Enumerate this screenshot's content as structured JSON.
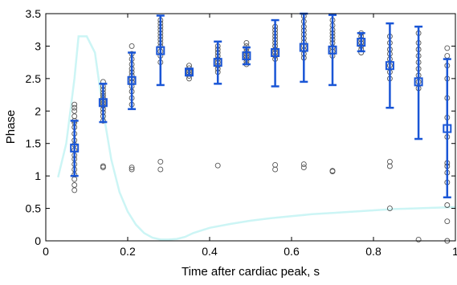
{
  "chart_data": {
    "type": "scatter",
    "title": "",
    "xlabel": "Time after cardiac peak, s",
    "ylabel": "Phase",
    "xlim": [
      0,
      1
    ],
    "ylim": [
      0,
      3.5
    ],
    "xticks": [
      {
        "value": 0,
        "label": "0"
      },
      {
        "value": 0.2,
        "label": "0.2"
      },
      {
        "value": 0.4,
        "label": "0.4"
      },
      {
        "value": 0.6,
        "label": "0.6"
      },
      {
        "value": 0.8,
        "label": "0.8"
      },
      {
        "value": 1,
        "label": "1"
      }
    ],
    "yticks": [
      {
        "value": 0,
        "label": "0"
      },
      {
        "value": 0.5,
        "label": "0.5"
      },
      {
        "value": 1,
        "label": "1"
      },
      {
        "value": 1.5,
        "label": "1.5"
      },
      {
        "value": 2,
        "label": "2"
      },
      {
        "value": 2.5,
        "label": "2.5"
      },
      {
        "value": 3,
        "label": "3"
      },
      {
        "value": 3.5,
        "label": "3.5"
      }
    ],
    "grid": false,
    "legend": "none",
    "colors": {
      "points": "#555555",
      "mean": "#1a56d6",
      "curve": "#ccf5f5"
    },
    "background_curve": {
      "x": [
        0.03,
        0.05,
        0.07,
        0.08,
        0.1,
        0.12,
        0.14,
        0.16,
        0.18,
        0.2,
        0.22,
        0.24,
        0.26,
        0.28,
        0.3,
        0.32,
        0.34,
        0.36,
        0.4,
        0.45,
        0.5,
        0.55,
        0.6,
        0.65,
        0.7,
        0.75,
        0.8,
        0.85,
        0.9,
        0.95,
        1.0
      ],
      "y": [
        0.98,
        1.5,
        2.5,
        3.15,
        3.15,
        2.9,
        2.0,
        1.25,
        0.75,
        0.45,
        0.25,
        0.12,
        0.05,
        0.02,
        0.02,
        0.03,
        0.06,
        0.12,
        0.2,
        0.26,
        0.31,
        0.35,
        0.38,
        0.41,
        0.43,
        0.45,
        0.47,
        0.49,
        0.5,
        0.51,
        0.52
      ]
    },
    "scatter_points": [
      {
        "x": 0.07,
        "y": [
          0.78,
          0.86,
          0.95,
          1.02,
          1.1,
          1.18,
          1.26,
          1.32,
          1.4,
          1.48,
          1.55,
          1.65,
          1.75,
          1.82,
          1.85,
          1.92,
          2.0,
          2.05,
          2.1
        ]
      },
      {
        "x": 0.14,
        "y": [
          1.13,
          1.15,
          1.85,
          1.92,
          1.98,
          2.03,
          2.08,
          2.12,
          2.16,
          2.2,
          2.24,
          2.28,
          2.33,
          2.38,
          2.45
        ]
      },
      {
        "x": 0.21,
        "y": [
          1.1,
          1.13,
          2.1,
          2.2,
          2.3,
          2.38,
          2.45,
          2.5,
          2.55,
          2.6,
          2.65,
          2.72,
          2.8,
          2.88,
          3.0
        ]
      },
      {
        "x": 0.28,
        "y": [
          1.1,
          1.22,
          2.75,
          2.85,
          2.92,
          3.0,
          3.05,
          3.1,
          3.15,
          3.2,
          3.25,
          3.3,
          3.35,
          3.4
        ]
      },
      {
        "x": 0.35,
        "y": [
          2.5,
          2.54,
          2.58,
          2.62,
          2.66,
          2.7
        ]
      },
      {
        "x": 0.42,
        "y": [
          1.16,
          2.6,
          2.65,
          2.7,
          2.75,
          2.8,
          2.85,
          2.9,
          2.95,
          3.0
        ]
      },
      {
        "x": 0.49,
        "y": [
          2.72,
          2.76,
          2.8,
          2.84,
          2.88,
          2.92,
          2.96,
          3.0,
          3.05
        ]
      },
      {
        "x": 0.56,
        "y": [
          1.1,
          1.17,
          2.8,
          2.85,
          2.9,
          2.95,
          3.0,
          3.05,
          3.1,
          3.15,
          3.2,
          3.25,
          3.3
        ]
      },
      {
        "x": 0.63,
        "y": [
          1.13,
          1.18,
          2.82,
          2.88,
          2.94,
          3.0,
          3.06,
          3.12,
          3.18,
          3.24,
          3.3,
          3.38,
          3.46
        ]
      },
      {
        "x": 0.7,
        "y": [
          1.07,
          1.08,
          2.85,
          2.92,
          2.98,
          3.05,
          3.1,
          3.15,
          3.2,
          3.25,
          3.32,
          3.4
        ]
      },
      {
        "x": 0.77,
        "y": [
          2.9,
          2.95,
          3.0,
          3.05,
          3.1,
          3.15,
          3.2
        ]
      },
      {
        "x": 0.84,
        "y": [
          0.5,
          1.15,
          1.22,
          2.5,
          2.6,
          2.7,
          2.8,
          2.88,
          2.95,
          3.05,
          3.15
        ]
      },
      {
        "x": 0.91,
        "y": [
          0.02,
          2.35,
          2.45,
          2.55,
          2.65,
          2.75,
          2.85,
          2.95,
          3.05,
          3.2
        ]
      },
      {
        "x": 0.98,
        "y": [
          0.0,
          0.3,
          0.55,
          0.9,
          1.05,
          1.15,
          1.2,
          1.6,
          1.9,
          2.2,
          2.5,
          2.7,
          2.85,
          2.97
        ]
      }
    ],
    "means": [
      {
        "x": 0.07,
        "mean": 1.43,
        "lower": 1.0,
        "upper": 1.85
      },
      {
        "x": 0.14,
        "mean": 2.13,
        "lower": 1.83,
        "upper": 2.42
      },
      {
        "x": 0.21,
        "mean": 2.47,
        "lower": 2.03,
        "upper": 2.9
      },
      {
        "x": 0.28,
        "mean": 2.93,
        "lower": 2.4,
        "upper": 3.47
      },
      {
        "x": 0.35,
        "mean": 2.6,
        "lower": 2.55,
        "upper": 2.65
      },
      {
        "x": 0.42,
        "mean": 2.75,
        "lower": 2.42,
        "upper": 3.07
      },
      {
        "x": 0.49,
        "mean": 2.85,
        "lower": 2.72,
        "upper": 2.98
      },
      {
        "x": 0.56,
        "mean": 2.9,
        "lower": 2.38,
        "upper": 3.4
      },
      {
        "x": 0.63,
        "mean": 2.98,
        "lower": 2.45,
        "upper": 3.5
      },
      {
        "x": 0.7,
        "mean": 2.94,
        "lower": 2.4,
        "upper": 3.48
      },
      {
        "x": 0.77,
        "mean": 3.06,
        "lower": 2.92,
        "upper": 3.2
      },
      {
        "x": 0.84,
        "mean": 2.7,
        "lower": 2.05,
        "upper": 3.35
      },
      {
        "x": 0.91,
        "mean": 2.45,
        "lower": 1.57,
        "upper": 3.3
      },
      {
        "x": 0.98,
        "mean": 1.73,
        "lower": 0.67,
        "upper": 2.8
      }
    ]
  }
}
